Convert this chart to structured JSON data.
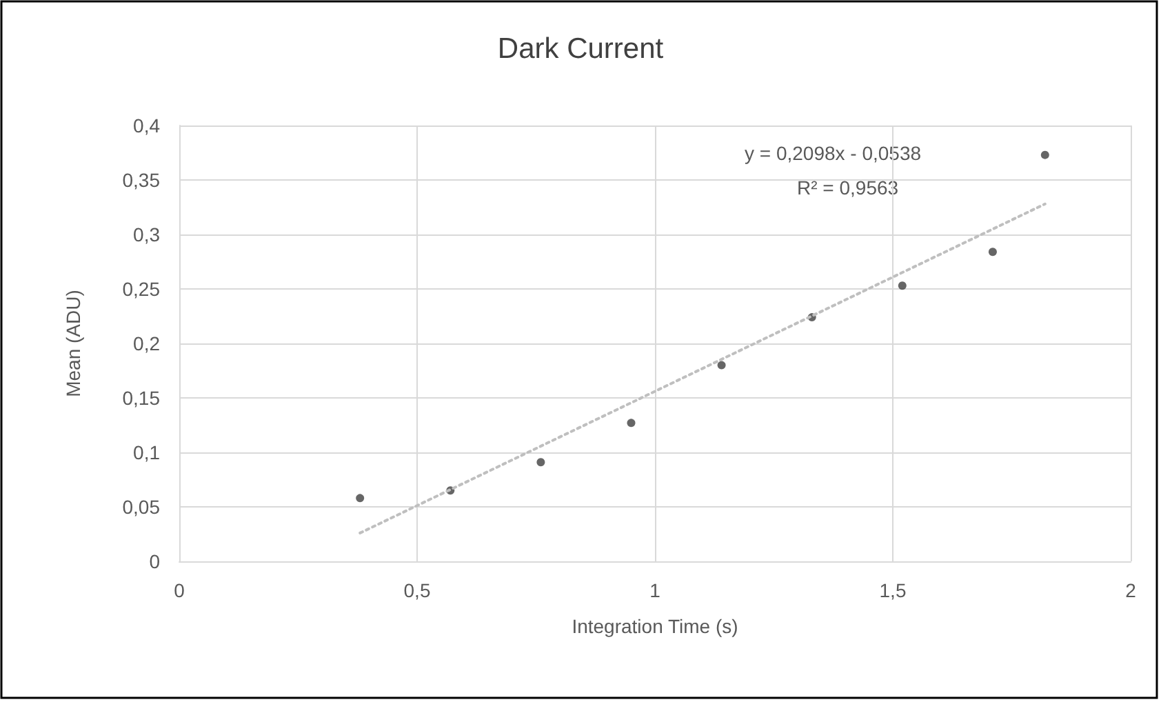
{
  "chart_data": {
    "type": "scatter",
    "title": "Dark Current",
    "xlabel": "Integration Time (s)",
    "ylabel": "Mean (ADU)",
    "x": [
      0.38,
      0.57,
      0.76,
      0.95,
      1.14,
      1.33,
      1.52,
      1.71,
      1.82
    ],
    "series": [
      {
        "color": "#404040",
        "values": [
          0.058,
          0.065,
          0.091,
          0.127,
          0.18,
          0.224,
          0.253,
          0.284,
          0.373
        ]
      },
      {
        "type": "line",
        "x": [
          0.38,
          1.82
        ],
        "values": [
          0.026,
          0.328
        ],
        "color": "#bfbfbf",
        "line_style": "dotted",
        "marker": "none"
      }
    ],
    "annotations": [
      "y = 0,2098x - 0,0538",
      "R² = 0,9563"
    ],
    "marker": "circle",
    "xlim": [
      0,
      2
    ],
    "xticks": [
      0,
      {
        "value": 0.5,
        "label": "0,5"
      },
      1,
      {
        "value": 1.5,
        "label": "1,5"
      },
      2
    ],
    "ylim": [
      0,
      0.4
    ],
    "yticks": [
      0,
      {
        "value": 0.05,
        "label": "0,05"
      },
      {
        "value": 0.1,
        "label": "0,1"
      },
      {
        "value": 0.15,
        "label": "0,15"
      },
      {
        "value": 0.2,
        "label": "0,2"
      },
      {
        "value": 0.25,
        "label": "0,25"
      },
      {
        "value": 0.3,
        "label": "0,3"
      },
      {
        "value": 0.35,
        "label": "0,35"
      },
      {
        "value": 0.4,
        "label": "0,4"
      }
    ],
    "grid": true
  }
}
